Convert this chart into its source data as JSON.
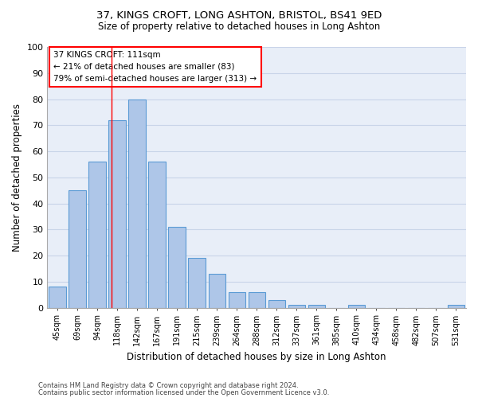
{
  "title1": "37, KINGS CROFT, LONG ASHTON, BRISTOL, BS41 9ED",
  "title2": "Size of property relative to detached houses in Long Ashton",
  "xlabel": "Distribution of detached houses by size in Long Ashton",
  "ylabel": "Number of detached properties",
  "footer1": "Contains HM Land Registry data © Crown copyright and database right 2024.",
  "footer2": "Contains public sector information licensed under the Open Government Licence v3.0.",
  "categories": [
    "45sqm",
    "69sqm",
    "94sqm",
    "118sqm",
    "142sqm",
    "167sqm",
    "191sqm",
    "215sqm",
    "239sqm",
    "264sqm",
    "288sqm",
    "312sqm",
    "337sqm",
    "361sqm",
    "385sqm",
    "410sqm",
    "434sqm",
    "458sqm",
    "482sqm",
    "507sqm",
    "531sqm"
  ],
  "values": [
    8,
    45,
    56,
    72,
    80,
    56,
    31,
    19,
    13,
    6,
    6,
    3,
    1,
    1,
    0,
    1,
    0,
    0,
    0,
    0,
    1
  ],
  "bar_color": "#aec6e8",
  "bar_edgecolor": "#5b9bd5",
  "bar_linewidth": 0.8,
  "grid_color": "#c8d4e8",
  "bg_color": "#e8eef8",
  "property_line_label": "37 KINGS CROFT: 111sqm",
  "annotation_line1": "← 21% of detached houses are smaller (83)",
  "annotation_line2": "79% of semi-detached houses are larger (313) →",
  "ylim": [
    0,
    100
  ],
  "property_sqm": 111,
  "bin_starts": [
    45,
    69,
    94,
    118,
    142,
    167,
    191,
    215,
    239,
    264,
    288,
    312,
    337,
    361,
    385,
    410,
    434,
    458,
    482,
    507,
    531
  ]
}
